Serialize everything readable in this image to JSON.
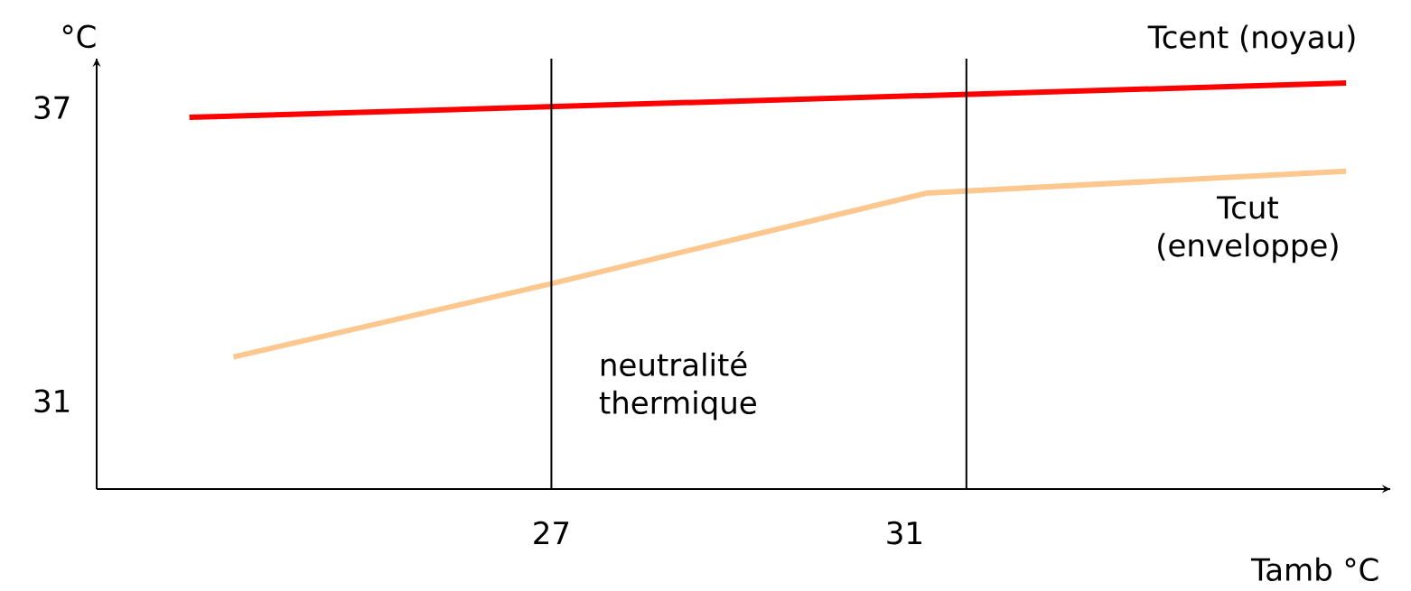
{
  "chart_data": {
    "type": "line",
    "xlabel": "Tamb °C",
    "ylabel": "°C",
    "series": [
      {
        "name": "Tcent (noyau)",
        "color": "#ff0000",
        "x": [
          22.9,
          36
        ],
        "values": [
          36.8,
          37.5
        ]
      },
      {
        "name": "Tcut (enveloppe)",
        "color": "#fdc890",
        "x": [
          23.4,
          27,
          31.25,
          36
        ],
        "values": [
          31.9,
          33.4,
          35.25,
          35.7
        ]
      }
    ],
    "xlim": [
      21.85,
      36.5
    ],
    "ylim": [
      29.2,
      38
    ],
    "xticks": [
      27,
      31
    ],
    "yticks": [
      31,
      37
    ],
    "ref_lines": [
      {
        "axis": "x",
        "value": 27,
        "color": "#000000"
      },
      {
        "axis": "x",
        "value": 31.7,
        "color": "#000000"
      }
    ],
    "annotations": [
      "neutralité thermique"
    ],
    "grid": false,
    "marker": "none",
    "line_style": "solid"
  }
}
